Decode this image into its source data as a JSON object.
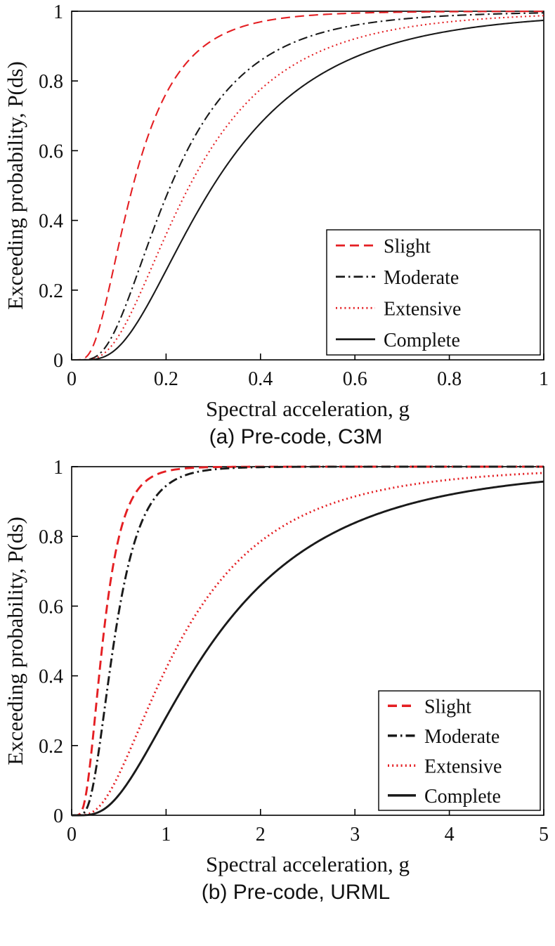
{
  "page": {
    "background": "#ffffff"
  },
  "colors": {
    "red": "#e41f23",
    "black": "#1a1a1a",
    "axis": "#000000"
  },
  "figures": [
    {
      "caption": "(a) Pre-code, C3M"
    },
    {
      "caption": "(b) Pre-code, URML"
    }
  ],
  "chart_data": [
    {
      "type": "line",
      "title": "(a) Pre-code, C3M",
      "xlabel": "Spectral acceleration, g",
      "ylabel": "Exceeding probability, P(ds)",
      "xlim": [
        0,
        1
      ],
      "ylim": [
        0,
        1
      ],
      "xticks": [
        0,
        0.2,
        0.4,
        0.6,
        0.8,
        1
      ],
      "xtick_labels": [
        "0",
        "0.2",
        "0.4",
        "0.6",
        "0.8",
        "1"
      ],
      "yticks": [
        0,
        0.2,
        0.4,
        0.6,
        0.8,
        1
      ],
      "ytick_labels": [
        "0",
        "0.2",
        "0.4",
        "0.6",
        "0.8",
        "1"
      ],
      "grid": false,
      "legend_position": "lower right",
      "model": "lognormal_cdf",
      "series": [
        {
          "name": "Slight",
          "color": "#e41f23",
          "line_style": "dashed",
          "median": 0.13,
          "beta": 0.6,
          "sample_x": [
            0.1,
            0.2,
            0.3,
            0.4,
            0.5,
            0.6,
            0.7,
            0.8,
            0.9,
            1.0
          ],
          "sample_y": [
            0.331,
            0.764,
            0.918,
            0.969,
            0.988,
            0.995,
            0.997,
            0.999,
            0.999,
            1.0
          ]
        },
        {
          "name": "Moderate",
          "color": "#1a1a1a",
          "line_style": "dashdot",
          "median": 0.21,
          "beta": 0.6,
          "sample_x": [
            0.1,
            0.2,
            0.3,
            0.4,
            0.5,
            0.6,
            0.7,
            0.8,
            0.9,
            1.0
          ],
          "sample_y": [
            0.108,
            0.468,
            0.724,
            0.859,
            0.926,
            0.96,
            0.978,
            0.987,
            0.992,
            0.995
          ]
        },
        {
          "name": "Extensive",
          "color": "#e41f23",
          "line_style": "dotted",
          "median": 0.25,
          "beta": 0.62,
          "sample_x": [
            0.1,
            0.2,
            0.3,
            0.4,
            0.5,
            0.6,
            0.7,
            0.8,
            0.9,
            1.0
          ],
          "sample_y": [
            0.07,
            0.359,
            0.616,
            0.776,
            0.868,
            0.921,
            0.952,
            0.97,
            0.981,
            0.987
          ]
        },
        {
          "name": "Complete",
          "color": "#1a1a1a",
          "line_style": "solid",
          "median": 0.3,
          "beta": 0.62,
          "sample_x": [
            0.1,
            0.2,
            0.3,
            0.4,
            0.5,
            0.6,
            0.7,
            0.8,
            0.9,
            1.0
          ],
          "sample_y": [
            0.038,
            0.257,
            0.5,
            0.679,
            0.795,
            0.868,
            0.914,
            0.943,
            0.962,
            0.974
          ]
        }
      ]
    },
    {
      "type": "line",
      "title": "(b) Pre-code, URML",
      "xlabel": "Spectral acceleration, g",
      "ylabel": "Exceeding probability, P(ds)",
      "xlim": [
        0,
        5
      ],
      "ylim": [
        0,
        1
      ],
      "xticks": [
        0,
        1,
        2,
        3,
        4,
        5
      ],
      "xtick_labels": [
        "0",
        "1",
        "2",
        "3",
        "4",
        "5"
      ],
      "yticks": [
        0,
        0.2,
        0.4,
        0.6,
        0.8,
        1
      ],
      "ytick_labels": [
        "0",
        "0.2",
        "0.4",
        "0.6",
        "0.8",
        "1"
      ],
      "grid": false,
      "legend_position": "lower right",
      "model": "lognormal_cdf",
      "series": [
        {
          "name": "Slight",
          "color": "#e41f23",
          "line_style": "dashed",
          "median": 0.33,
          "beta": 0.5,
          "sample_x": [
            0.5,
            1.0,
            1.5,
            2.0,
            2.5,
            3.0,
            3.5,
            4.0,
            4.5,
            5.0
          ],
          "sample_y": [
            0.797,
            0.987,
            0.999,
            1.0,
            1.0,
            1.0,
            1.0,
            1.0,
            1.0,
            1.0
          ]
        },
        {
          "name": "Moderate",
          "color": "#1a1a1a",
          "line_style": "dashdot",
          "median": 0.45,
          "beta": 0.5,
          "sample_x": [
            0.5,
            1.0,
            1.5,
            2.0,
            2.5,
            3.0,
            3.5,
            4.0,
            4.5,
            5.0
          ],
          "sample_y": [
            0.583,
            0.945,
            0.992,
            0.999,
            1.0,
            1.0,
            1.0,
            1.0,
            1.0,
            1.0
          ]
        },
        {
          "name": "Extensive",
          "color": "#e41f23",
          "line_style": "dotted",
          "median": 1.15,
          "beta": 0.7,
          "sample_x": [
            0.5,
            1.0,
            1.5,
            2.0,
            2.5,
            3.0,
            3.5,
            4.0,
            4.5,
            5.0
          ],
          "sample_y": [
            0.117,
            0.421,
            0.648,
            0.785,
            0.866,
            0.915,
            0.944,
            0.962,
            0.974,
            0.982
          ]
        },
        {
          "name": "Complete",
          "color": "#1a1a1a",
          "line_style": "solid",
          "median": 1.5,
          "beta": 0.7,
          "sample_x": [
            0.5,
            1.0,
            1.5,
            2.0,
            2.5,
            3.0,
            3.5,
            4.0,
            4.5,
            5.0
          ],
          "sample_y": [
            0.058,
            0.281,
            0.5,
            0.66,
            0.767,
            0.839,
            0.887,
            0.919,
            0.942,
            0.957
          ]
        }
      ]
    }
  ]
}
